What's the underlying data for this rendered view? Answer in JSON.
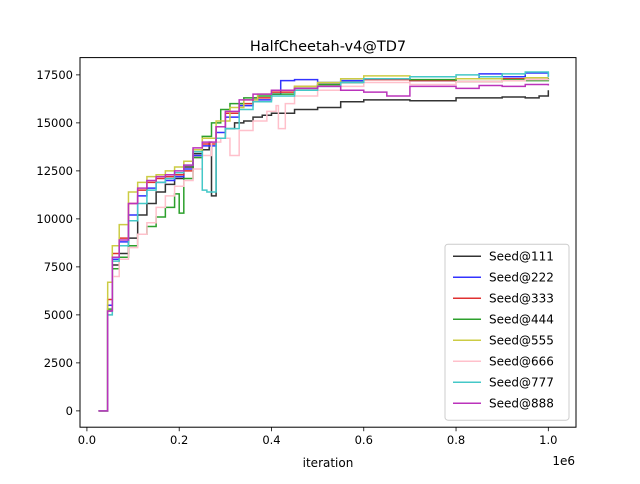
{
  "chart_data": {
    "type": "line",
    "title": "HalfCheetah-v4@TD7",
    "xlabel": "iteration",
    "x_multiplier_label": "1e6",
    "xlim": [
      -0.015,
      1.06
    ],
    "ylim": [
      -850,
      18400
    ],
    "x_ticks": [
      0.0,
      0.2,
      0.4,
      0.6,
      0.8,
      1.0
    ],
    "x_tick_labels": [
      "0.0",
      "0.2",
      "0.4",
      "0.6",
      "0.8",
      "1.0"
    ],
    "y_ticks": [
      0,
      2500,
      5000,
      7500,
      10000,
      12500,
      15000,
      17500
    ],
    "y_tick_labels": [
      "0",
      "2500",
      "5000",
      "7500",
      "10000",
      "12500",
      "15000",
      "17500"
    ],
    "grid": false,
    "legend_position": "lower-right",
    "series": [
      {
        "name": "Seed@111",
        "color": "#333333",
        "x": [
          0.025,
          0.04,
          0.045,
          0.055,
          0.07,
          0.09,
          0.11,
          0.13,
          0.15,
          0.17,
          0.19,
          0.21,
          0.23,
          0.25,
          0.265,
          0.27,
          0.28,
          0.3,
          0.32,
          0.34,
          0.36,
          0.38,
          0.4,
          0.45,
          0.5,
          0.55,
          0.6,
          0.7,
          0.8,
          0.9,
          0.95,
          0.98,
          1.0
        ],
        "y": [
          0,
          0,
          5200,
          7600,
          8200,
          9000,
          10200,
          10800,
          11400,
          11800,
          12100,
          12700,
          13400,
          13600,
          14000,
          11200,
          14200,
          14700,
          15000,
          15100,
          15300,
          15400,
          15500,
          15700,
          15800,
          16100,
          16200,
          16150,
          16300,
          16350,
          16300,
          16400,
          16700
        ]
      },
      {
        "name": "Seed@222",
        "color": "#3333ff",
        "x": [
          0.025,
          0.04,
          0.045,
          0.055,
          0.07,
          0.09,
          0.11,
          0.13,
          0.15,
          0.17,
          0.19,
          0.21,
          0.23,
          0.25,
          0.28,
          0.3,
          0.33,
          0.36,
          0.4,
          0.42,
          0.45,
          0.5,
          0.55,
          0.6,
          0.7,
          0.8,
          0.85,
          0.9,
          0.95,
          1.0
        ],
        "y": [
          0,
          0,
          5500,
          7900,
          8800,
          10200,
          11200,
          11600,
          11900,
          12000,
          12200,
          12600,
          13300,
          13800,
          14500,
          15300,
          15900,
          16200,
          16500,
          17200,
          17250,
          17100,
          17200,
          17300,
          17200,
          17300,
          17550,
          17400,
          17600,
          17400
        ]
      },
      {
        "name": "Seed@333",
        "color": "#e03131",
        "x": [
          0.025,
          0.04,
          0.045,
          0.055,
          0.07,
          0.09,
          0.11,
          0.13,
          0.15,
          0.17,
          0.19,
          0.21,
          0.23,
          0.25,
          0.28,
          0.3,
          0.33,
          0.36,
          0.4,
          0.45,
          0.5,
          0.55,
          0.6,
          0.7,
          0.8,
          0.9,
          0.95,
          1.0
        ],
        "y": [
          0,
          0,
          5800,
          8200,
          9000,
          10800,
          11500,
          11900,
          12100,
          12200,
          12300,
          12500,
          13200,
          13900,
          14800,
          15500,
          16000,
          16300,
          16600,
          16900,
          17000,
          17100,
          17250,
          17200,
          17150,
          17300,
          17250,
          17300
        ]
      },
      {
        "name": "Seed@444",
        "color": "#2ca02c",
        "x": [
          0.025,
          0.04,
          0.045,
          0.055,
          0.07,
          0.09,
          0.11,
          0.13,
          0.15,
          0.17,
          0.19,
          0.2,
          0.21,
          0.23,
          0.25,
          0.27,
          0.29,
          0.31,
          0.34,
          0.37,
          0.4,
          0.45,
          0.5,
          0.55,
          0.6,
          0.7,
          0.8,
          0.9,
          0.95,
          1.0
        ],
        "y": [
          0,
          0,
          5300,
          7400,
          8000,
          8600,
          9200,
          9600,
          10100,
          10600,
          11300,
          10300,
          12100,
          13200,
          14300,
          15000,
          15700,
          16000,
          16300,
          16400,
          16500,
          16800,
          17000,
          17100,
          17300,
          17250,
          17150,
          17250,
          17200,
          17350
        ]
      },
      {
        "name": "Seed@555",
        "color": "#cccc44",
        "x": [
          0.025,
          0.04,
          0.045,
          0.055,
          0.07,
          0.09,
          0.11,
          0.13,
          0.15,
          0.17,
          0.19,
          0.21,
          0.23,
          0.25,
          0.28,
          0.31,
          0.34,
          0.37,
          0.4,
          0.45,
          0.5,
          0.55,
          0.6,
          0.7,
          0.8,
          0.9,
          0.95,
          1.0
        ],
        "y": [
          0,
          0,
          6700,
          8600,
          9700,
          11400,
          11900,
          12200,
          12300,
          12500,
          12700,
          13000,
          13600,
          14200,
          15100,
          15800,
          16200,
          16500,
          16700,
          16900,
          17100,
          17300,
          17450,
          17400,
          17300,
          17200,
          17350,
          17350
        ]
      },
      {
        "name": "Seed@666",
        "color": "#ffc0cb",
        "x": [
          0.025,
          0.04,
          0.045,
          0.055,
          0.07,
          0.09,
          0.11,
          0.13,
          0.15,
          0.17,
          0.19,
          0.21,
          0.23,
          0.25,
          0.27,
          0.29,
          0.31,
          0.33,
          0.36,
          0.39,
          0.41,
          0.415,
          0.43,
          0.45,
          0.5,
          0.55,
          0.6,
          0.7,
          0.8,
          0.9,
          0.95,
          1.0
        ],
        "y": [
          0,
          0,
          5000,
          7000,
          7900,
          8500,
          9200,
          9800,
          10600,
          11200,
          11700,
          12000,
          12600,
          13300,
          14000,
          14200,
          13300,
          14600,
          15100,
          15600,
          15900,
          14700,
          16000,
          16400,
          16700,
          16900,
          17100,
          17000,
          17150,
          17200,
          17250,
          17300
        ]
      },
      {
        "name": "Seed@777",
        "color": "#44c8c8",
        "x": [
          0.025,
          0.04,
          0.045,
          0.055,
          0.07,
          0.09,
          0.11,
          0.13,
          0.15,
          0.17,
          0.19,
          0.21,
          0.23,
          0.25,
          0.26,
          0.28,
          0.3,
          0.33,
          0.36,
          0.4,
          0.45,
          0.5,
          0.55,
          0.6,
          0.7,
          0.8,
          0.85,
          0.9,
          0.95,
          1.0
        ],
        "y": [
          0,
          0,
          5000,
          7800,
          8600,
          9900,
          10800,
          11500,
          11900,
          12100,
          12400,
          12800,
          13500,
          11500,
          11400,
          14200,
          14700,
          15700,
          16100,
          16400,
          16700,
          16900,
          17100,
          17300,
          17400,
          17500,
          17400,
          17550,
          17650,
          17400
        ]
      },
      {
        "name": "Seed@888",
        "color": "#bb33bb",
        "x": [
          0.025,
          0.04,
          0.045,
          0.055,
          0.07,
          0.09,
          0.11,
          0.13,
          0.15,
          0.17,
          0.19,
          0.21,
          0.23,
          0.25,
          0.28,
          0.3,
          0.33,
          0.36,
          0.4,
          0.45,
          0.5,
          0.55,
          0.6,
          0.65,
          0.7,
          0.8,
          0.85,
          0.9,
          0.95,
          1.0
        ],
        "y": [
          0,
          0,
          5200,
          8000,
          8900,
          10800,
          11600,
          12000,
          12200,
          12300,
          12500,
          12800,
          13700,
          14000,
          14800,
          15600,
          16200,
          16500,
          16700,
          16800,
          16900,
          16700,
          16600,
          16400,
          16900,
          16800,
          16950,
          16900,
          17000,
          16950
        ]
      }
    ]
  }
}
